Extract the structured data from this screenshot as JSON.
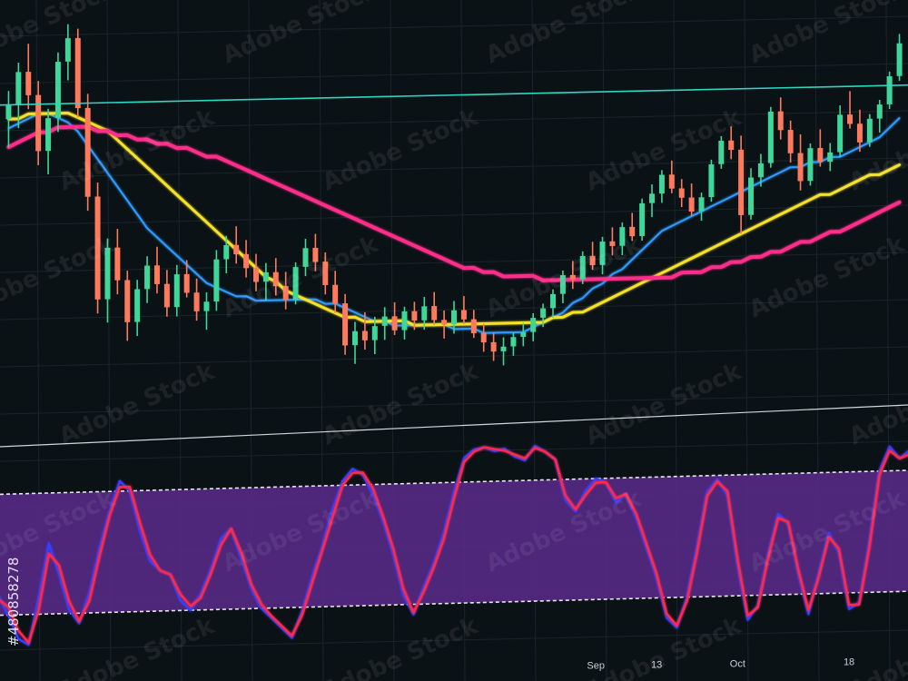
{
  "colors": {
    "background": "#0b1216",
    "grid": "#18252b",
    "up": "#3fd69a",
    "down": "#ff7a5c",
    "ma_fast": "#2e9bff",
    "ma_mid": "#f5e02c",
    "ma_slow": "#ff2d8a",
    "level_line": "#2fd6c0",
    "osc_band": "#5a2a8c",
    "stoch_k": "#3340ff",
    "stoch_d": "#ff2a4a"
  },
  "watermark": {
    "text": "Adobe Stock",
    "id": "#480858278"
  },
  "chart_data": [
    {
      "type": "candlestick",
      "title": "",
      "grid": true,
      "level_line": 142,
      "ylim": [
        80,
        160
      ],
      "candles": [
        [
          138,
          144,
          132,
          141
        ],
        [
          141,
          150,
          136,
          148
        ],
        [
          148,
          154,
          140,
          143
        ],
        [
          143,
          146,
          128,
          131
        ],
        [
          131,
          140,
          126,
          138
        ],
        [
          138,
          152,
          135,
          150
        ],
        [
          150,
          158,
          146,
          155
        ],
        [
          155,
          157,
          138,
          140
        ],
        [
          140,
          143,
          118,
          121
        ],
        [
          121,
          124,
          96,
          99
        ],
        [
          99,
          112,
          94,
          110
        ],
        [
          110,
          114,
          100,
          103
        ],
        [
          103,
          105,
          90,
          94
        ],
        [
          94,
          103,
          91,
          101
        ],
        [
          101,
          108,
          98,
          106
        ],
        [
          106,
          110,
          100,
          102
        ],
        [
          102,
          105,
          95,
          97
        ],
        [
          97,
          106,
          95,
          104
        ],
        [
          104,
          107,
          99,
          100
        ],
        [
          100,
          103,
          94,
          96
        ],
        [
          96,
          100,
          92,
          98
        ],
        [
          98,
          109,
          96,
          107
        ],
        [
          107,
          112,
          104,
          110
        ],
        [
          110,
          114,
          106,
          108
        ],
        [
          108,
          111,
          103,
          105
        ],
        [
          105,
          108,
          100,
          102
        ],
        [
          102,
          106,
          98,
          104
        ],
        [
          104,
          107,
          99,
          101
        ],
        [
          101,
          104,
          96,
          98
        ],
        [
          98,
          106,
          97,
          105
        ],
        [
          105,
          111,
          103,
          109
        ],
        [
          109,
          112,
          104,
          106
        ],
        [
          106,
          108,
          99,
          101
        ],
        [
          101,
          104,
          95,
          97
        ],
        [
          97,
          99,
          86,
          88
        ],
        [
          88,
          93,
          84,
          91
        ],
        [
          91,
          95,
          87,
          89
        ],
        [
          89,
          94,
          86,
          92
        ],
        [
          92,
          96,
          89,
          94
        ],
        [
          94,
          97,
          90,
          91
        ],
        [
          91,
          96,
          89,
          95
        ],
        [
          95,
          97,
          91,
          93
        ],
        [
          93,
          98,
          91,
          96
        ],
        [
          96,
          99,
          92,
          93
        ],
        [
          93,
          95,
          89,
          92
        ],
        [
          92,
          97,
          90,
          95
        ],
        [
          95,
          98,
          92,
          93
        ],
        [
          93,
          95,
          89,
          90
        ],
        [
          90,
          92,
          86,
          88
        ],
        [
          88,
          90,
          84,
          86
        ],
        [
          86,
          89,
          83,
          87
        ],
        [
          87,
          90,
          85,
          89
        ],
        [
          89,
          92,
          87,
          90
        ],
        [
          90,
          94,
          88,
          93
        ],
        [
          93,
          96,
          91,
          95
        ],
        [
          95,
          99,
          93,
          98
        ],
        [
          98,
          103,
          96,
          102
        ],
        [
          102,
          105,
          99,
          101
        ],
        [
          101,
          107,
          100,
          106
        ],
        [
          106,
          109,
          103,
          104
        ],
        [
          104,
          110,
          102,
          109
        ],
        [
          109,
          112,
          106,
          108
        ],
        [
          108,
          113,
          106,
          112
        ],
        [
          112,
          115,
          109,
          110
        ],
        [
          110,
          118,
          109,
          117
        ],
        [
          117,
          121,
          114,
          119
        ],
        [
          119,
          124,
          117,
          123
        ],
        [
          123,
          126,
          119,
          120
        ],
        [
          120,
          122,
          116,
          118
        ],
        [
          118,
          121,
          114,
          115
        ],
        [
          115,
          119,
          113,
          118
        ],
        [
          118,
          126,
          117,
          125
        ],
        [
          125,
          131,
          124,
          130
        ],
        [
          130,
          133,
          126,
          128
        ],
        [
          128,
          131,
          110,
          114
        ],
        [
          114,
          124,
          113,
          122
        ],
        [
          122,
          127,
          120,
          125
        ],
        [
          125,
          137,
          124,
          136
        ],
        [
          136,
          139,
          130,
          132
        ],
        [
          132,
          134,
          125,
          127
        ],
        [
          127,
          131,
          119,
          121
        ],
        [
          121,
          129,
          120,
          128
        ],
        [
          128,
          132,
          124,
          125
        ],
        [
          125,
          129,
          123,
          127
        ],
        [
          127,
          137,
          126,
          135
        ],
        [
          135,
          140,
          132,
          133
        ],
        [
          133,
          136,
          127,
          129
        ],
        [
          129,
          135,
          128,
          134
        ],
        [
          134,
          138,
          131,
          137
        ],
        [
          137,
          144,
          136,
          143
        ],
        [
          143,
          152,
          142,
          150
        ]
      ],
      "moving_averages": [
        {
          "period": "fast",
          "values": [
            136,
            137,
            138,
            139,
            139,
            138,
            137,
            135,
            132,
            129,
            126,
            123,
            120,
            117,
            114,
            112,
            110,
            108,
            106,
            104,
            102,
            101,
            100,
            99,
            99,
            98,
            98,
            98,
            98,
            98,
            98,
            98,
            97,
            97,
            96,
            95,
            94,
            93,
            93,
            92,
            92,
            92,
            92,
            92,
            92,
            91,
            91,
            91,
            90,
            90,
            90,
            90,
            90,
            91,
            92,
            93,
            94,
            96,
            97,
            99,
            100,
            102,
            103,
            105,
            107,
            109,
            111,
            112,
            113,
            114,
            115,
            116,
            117,
            118,
            119,
            120,
            121,
            122,
            123,
            124,
            124,
            125,
            125,
            126,
            126,
            127,
            128,
            129,
            130,
            132,
            134
          ]
        },
        {
          "period": "mid",
          "values": [
            138,
            138,
            139,
            139,
            139,
            139,
            139,
            138,
            137,
            136,
            135,
            133,
            131,
            129,
            127,
            125,
            123,
            121,
            119,
            117,
            115,
            113,
            111,
            109,
            107,
            105,
            103,
            102,
            100,
            99,
            98,
            97,
            96,
            95,
            94,
            94,
            93,
            93,
            93,
            93,
            93,
            92,
            92,
            92,
            92,
            92,
            92,
            92,
            92,
            92,
            92,
            92,
            92,
            92,
            92,
            93,
            93,
            94,
            94,
            95,
            96,
            97,
            98,
            99,
            100,
            101,
            102,
            103,
            104,
            105,
            106,
            107,
            108,
            109,
            110,
            111,
            112,
            113,
            114,
            115,
            116,
            117,
            118,
            118,
            119,
            120,
            121,
            122,
            122,
            123,
            124
          ]
        },
        {
          "period": "slow",
          "values": [
            132,
            133,
            134,
            135,
            135,
            136,
            136,
            136,
            136,
            135,
            135,
            134,
            134,
            133,
            133,
            132,
            132,
            131,
            131,
            130,
            129,
            129,
            128,
            127,
            126,
            125,
            124,
            123,
            122,
            121,
            120,
            119,
            118,
            117,
            116,
            115,
            114,
            113,
            112,
            111,
            110,
            109,
            108,
            107,
            106,
            105,
            104,
            104,
            103,
            103,
            102,
            102,
            102,
            102,
            101,
            101,
            101,
            101,
            101,
            101,
            101,
            101,
            101,
            101,
            101,
            101,
            101,
            101,
            102,
            102,
            102,
            103,
            103,
            104,
            104,
            105,
            105,
            106,
            106,
            107,
            108,
            108,
            109,
            110,
            110,
            111,
            112,
            113,
            114,
            115,
            116
          ]
        }
      ]
    },
    {
      "type": "line",
      "title": "",
      "grid": true,
      "ylim": [
        0,
        100
      ],
      "band": [
        20,
        80
      ],
      "x_tick_labels": [
        "Sep",
        "13",
        "Oct",
        "18"
      ],
      "x_tick_positions": [
        59,
        65,
        73,
        84
      ],
      "series": [
        {
          "values": [
            30,
            20,
            8,
            5,
            28,
            55,
            40,
            22,
            15,
            30,
            52,
            70,
            85,
            80,
            60,
            45,
            40,
            38,
            25,
            20,
            28,
            40,
            55,
            60,
            45,
            30,
            20,
            15,
            10,
            5,
            18,
            35,
            50,
            68,
            82,
            88,
            85,
            75,
            62,
            45,
            25,
            15,
            28,
            40,
            55,
            75,
            92,
            96,
            97,
            95,
            96,
            92,
            90,
            97,
            94,
            90,
            70,
            64,
            74,
            80,
            78,
            68,
            72,
            60,
            45,
            30,
            10,
            5,
            20,
            45,
            72,
            78,
            70,
            35,
            8,
            15,
            40,
            60,
            55,
            30,
            10,
            30,
            50,
            40,
            12,
            15,
            45,
            80,
            92,
            86,
            90
          ]
        },
        {
          "values": [
            28,
            24,
            12,
            6,
            22,
            50,
            44,
            26,
            16,
            26,
            48,
            68,
            82,
            82,
            64,
            48,
            40,
            38,
            28,
            22,
            26,
            38,
            52,
            60,
            48,
            32,
            22,
            16,
            11,
            6,
            16,
            32,
            48,
            64,
            80,
            86,
            86,
            78,
            64,
            48,
            28,
            16,
            26,
            38,
            52,
            72,
            90,
            95,
            97,
            96,
            95,
            93,
            91,
            96,
            94,
            90,
            72,
            65,
            72,
            78,
            78,
            70,
            72,
            62,
            47,
            32,
            12,
            6,
            18,
            42,
            70,
            77,
            72,
            38,
            10,
            14,
            38,
            58,
            56,
            32,
            12,
            28,
            48,
            42,
            14,
            14,
            42,
            78,
            90,
            86,
            88
          ]
        }
      ]
    }
  ]
}
